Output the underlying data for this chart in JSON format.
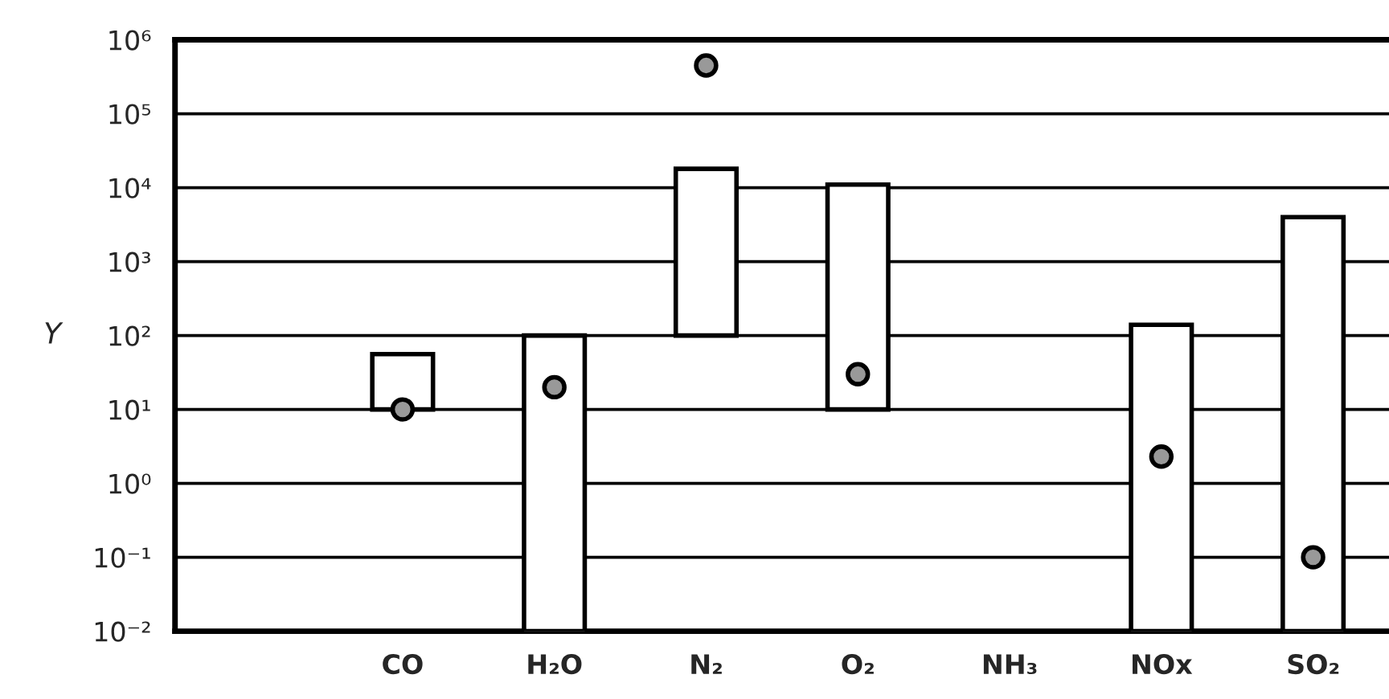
{
  "chart_data": {
    "type": "bar",
    "ylabel": "Y",
    "log": "y",
    "categories": [
      null,
      "CO",
      "H₂O",
      "N₂",
      "O₂",
      "NH₃",
      "NOx",
      "SO₂"
    ],
    "series": [
      {
        "color": "#ffffff",
        "values": [
          null,
          46,
          99.99,
          17900,
          10990,
          null,
          139.99,
          3999.99
        ],
        "base": [
          null,
          10,
          0.01,
          100,
          10,
          null,
          0.01,
          0.01
        ]
      },
      {
        "type": "scatter",
        "color": "#999999",
        "marker": "circle",
        "values": [
          null,
          10,
          20,
          450000,
          30,
          null,
          2.3,
          0.1
        ]
      }
    ],
    "ylim": [
      0.01,
      1000000
    ],
    "yticks": [
      {
        "value": 0.01,
        "label": "10⁻²"
      },
      {
        "value": 0.1,
        "label": "10⁻¹"
      },
      {
        "value": 1,
        "label": "10⁰"
      },
      {
        "value": 10,
        "label": "10¹"
      },
      {
        "value": 100,
        "label": "10²"
      },
      {
        "value": 1000,
        "label": "10³"
      },
      {
        "value": 10000,
        "label": "10⁴"
      },
      {
        "value": 100000,
        "label": "10⁵"
      },
      {
        "value": 1000000,
        "label": "10⁶"
      }
    ],
    "grid": "y"
  }
}
